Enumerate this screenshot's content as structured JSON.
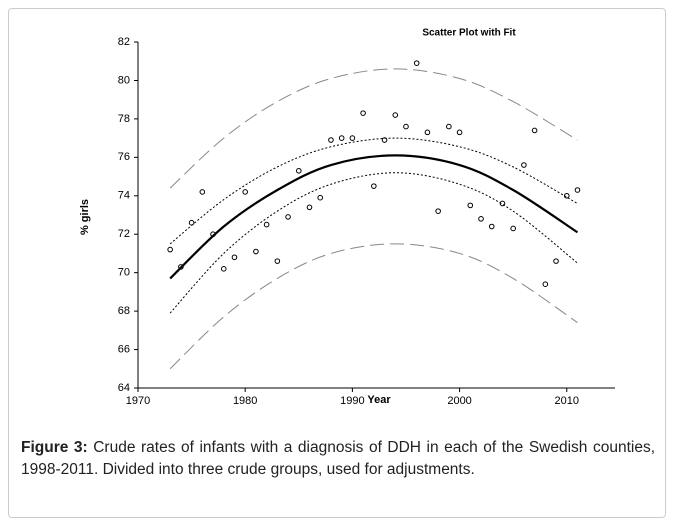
{
  "chart_data": {
    "type": "scatter",
    "title": "Scatter Plot with Fit",
    "x_label": "Year",
    "y_label": "% girls",
    "xlim": [
      1970,
      2014.5
    ],
    "ylim": [
      64,
      82
    ],
    "xticks": [
      1970,
      1980,
      1990,
      2000,
      2010
    ],
    "yticks": [
      64,
      66,
      68,
      70,
      72,
      74,
      76,
      78,
      80,
      82
    ],
    "series": [
      {
        "style": "points",
        "color": "#000000",
        "x": [
          1973,
          1974,
          1975,
          1976,
          1977,
          1978,
          1979,
          1980,
          1981,
          1982,
          1983,
          1984,
          1985,
          1986,
          1987,
          1988,
          1989,
          1990,
          1991,
          1992,
          1993,
          1994,
          1995,
          1996,
          1997,
          1998,
          1999,
          2000,
          2001,
          2002,
          2003,
          2004,
          2005,
          2006,
          2007,
          2008,
          2009,
          2010,
          2011
        ],
        "values": [
          71.2,
          70.3,
          72.6,
          74.2,
          72.0,
          70.2,
          70.8,
          74.2,
          71.1,
          72.5,
          70.6,
          72.9,
          75.3,
          73.4,
          73.9,
          76.9,
          77.0,
          77.0,
          78.3,
          74.5,
          76.9,
          78.2,
          77.6,
          80.9,
          77.3,
          73.2,
          77.6,
          77.3,
          73.5,
          72.8,
          72.4,
          73.6,
          72.3,
          75.6,
          77.4,
          69.4,
          70.6,
          74.0,
          74.3
        ]
      },
      {
        "style": "solid",
        "color": "#000000",
        "x": [
          1973,
          1978,
          1983,
          1988,
          1994,
          2000,
          2005,
          2011
        ],
        "values": [
          69.7,
          72.4,
          74.3,
          75.6,
          76.1,
          75.6,
          74.3,
          72.1
        ]
      },
      {
        "style": "dotted",
        "color": "#000000",
        "x": [
          1973,
          1978,
          1983,
          1988,
          1994,
          2000,
          2005,
          2011
        ],
        "values": [
          71.5,
          73.8,
          75.5,
          76.55,
          77.0,
          76.55,
          75.5,
          73.6
        ]
      },
      {
        "style": "dotted",
        "color": "#000000",
        "x": [
          1973,
          1978,
          1983,
          1988,
          1994,
          2000,
          2005,
          2011
        ],
        "values": [
          67.9,
          71.0,
          73.2,
          74.6,
          75.2,
          74.6,
          73.2,
          70.5
        ]
      },
      {
        "style": "dashed",
        "color": "#888888",
        "x": [
          1973,
          1978,
          1983,
          1988,
          1994,
          2000,
          2005,
          2011
        ],
        "values": [
          74.4,
          77.0,
          78.9,
          80.1,
          80.6,
          80.1,
          78.9,
          76.9
        ]
      },
      {
        "style": "dashed",
        "color": "#888888",
        "x": [
          1973,
          1978,
          1983,
          1988,
          1994,
          2000,
          2005,
          2011
        ],
        "values": [
          65.0,
          67.7,
          69.7,
          71.0,
          71.5,
          71.0,
          69.7,
          67.4
        ]
      }
    ]
  },
  "caption": {
    "label": "Figure 3:",
    "text": "Crude rates of infants with a diagnosis of DDH in each of the Swedish counties, 1998-2011. Divided into three crude groups, used for adjustments."
  }
}
